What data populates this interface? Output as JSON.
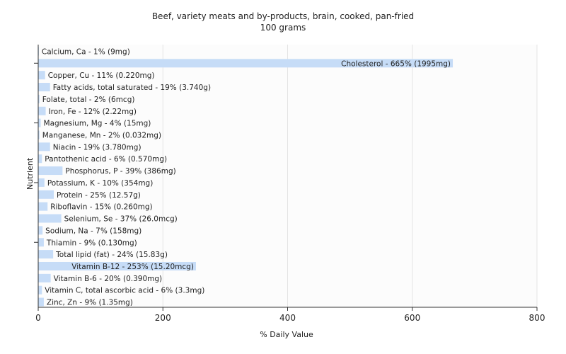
{
  "chart_data": {
    "type": "bar",
    "orientation": "horizontal",
    "title": "Beef, variety meats and by-products, brain, cooked, pan-fried",
    "subtitle": "100 grams",
    "xlabel": "% Daily Value",
    "ylabel": "Nutrient",
    "xlim": [
      0,
      800
    ],
    "xticks": [
      0,
      200,
      400,
      600,
      800
    ],
    "grid": true,
    "bar_color": "#c6dcf7",
    "categories": [
      "Calcium, Ca - 1% (9mg)",
      "Cholesterol - 665% (1995mg)",
      "Copper, Cu - 11% (0.220mg)",
      "Fatty acids, total saturated - 19% (3.740g)",
      "Folate, total - 2% (6mcg)",
      "Iron, Fe - 12% (2.22mg)",
      "Magnesium, Mg - 4% (15mg)",
      "Manganese, Mn - 2% (0.032mg)",
      "Niacin - 19% (3.780mg)",
      "Pantothenic acid - 6% (0.570mg)",
      "Phosphorus, P - 39% (386mg)",
      "Potassium, K - 10% (354mg)",
      "Protein - 25% (12.57g)",
      "Riboflavin - 15% (0.260mg)",
      "Selenium, Se - 37% (26.0mcg)",
      "Sodium, Na - 7% (158mg)",
      "Thiamin - 9% (0.130mg)",
      "Total lipid (fat) - 24% (15.83g)",
      "Vitamin B-12 - 253% (15.20mcg)",
      "Vitamin B-6 - 20% (0.390mg)",
      "Vitamin C, total ascorbic acid - 6% (3.3mg)",
      "Zinc, Zn - 9% (1.35mg)"
    ],
    "values": [
      1,
      665,
      11,
      19,
      2,
      12,
      4,
      2,
      19,
      6,
      39,
      10,
      25,
      15,
      37,
      7,
      9,
      24,
      253,
      20,
      6,
      9
    ]
  }
}
